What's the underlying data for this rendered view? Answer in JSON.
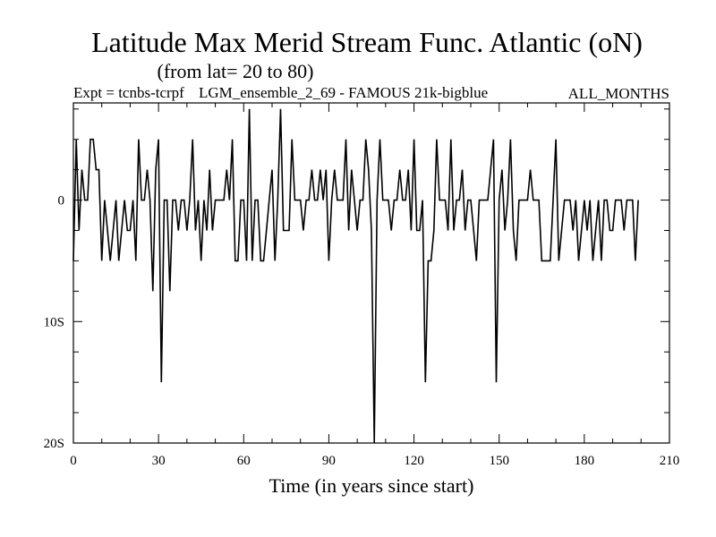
{
  "chart_data": {
    "type": "line",
    "title": "Latitude Max Merid Stream Func. Atlantic (oN)",
    "subtitle": "(from lat= 20 to 80)",
    "expt_label": "Expt = tcnbs-tcrpf",
    "run_label": "LGM_ensemble_2_69 - FAMOUS 21k-bigblue",
    "period_label": "ALL_MONTHS",
    "xlabel": "Time (in years since start)",
    "ylabel": "",
    "xlim": [
      0,
      210
    ],
    "ylim": [
      -20,
      8
    ],
    "x_ticks": [
      0,
      30,
      60,
      90,
      120,
      150,
      180,
      210
    ],
    "x_tick_labels": [
      "0",
      "30",
      "60",
      "90",
      "120",
      "150",
      "180",
      "210"
    ],
    "y_ticks": [
      0,
      -10,
      -20
    ],
    "y_tick_labels": [
      "0",
      "10S",
      "20S"
    ],
    "series": [
      {
        "x": [
          0,
          1,
          2,
          3,
          4,
          5,
          6,
          7,
          8,
          9,
          10,
          11,
          12,
          13,
          14,
          15,
          16,
          17,
          18,
          19,
          20,
          21,
          22,
          23,
          24,
          25,
          26,
          27,
          28,
          29,
          30,
          31,
          32,
          33,
          34,
          35,
          36,
          37,
          38,
          39,
          40,
          41,
          42,
          43,
          44,
          45,
          46,
          47,
          48,
          49,
          50,
          51,
          52,
          53,
          54,
          55,
          56,
          57,
          58,
          59,
          60,
          61,
          62,
          63,
          64,
          65,
          66,
          67,
          68,
          69,
          70,
          71,
          72,
          73,
          74,
          75,
          76,
          77,
          78,
          79,
          80,
          81,
          82,
          83,
          84,
          85,
          86,
          87,
          88,
          89,
          90,
          91,
          92,
          93,
          94,
          95,
          96,
          97,
          98,
          99,
          100,
          101,
          102,
          103,
          104,
          105,
          106,
          107,
          108,
          109,
          110,
          111,
          112,
          113,
          114,
          115,
          116,
          117,
          118,
          119,
          120,
          121,
          122,
          123,
          124,
          125,
          126,
          127,
          128,
          129,
          130,
          131,
          132,
          133,
          134,
          135,
          136,
          137,
          138,
          139,
          140,
          141,
          142,
          143,
          144,
          145,
          146,
          147,
          148,
          149,
          150,
          151,
          152,
          153,
          154,
          155,
          156,
          157,
          158,
          159,
          160,
          161,
          162,
          163,
          164,
          165,
          166,
          167,
          168,
          169,
          170,
          171,
          172,
          173,
          174,
          175,
          176,
          177,
          178,
          179,
          180,
          181,
          182,
          183,
          184,
          185,
          186,
          187,
          188,
          189,
          190,
          191,
          192,
          193,
          194,
          195,
          196,
          197,
          198,
          199
        ],
        "values": [
          -5,
          5,
          -2.5,
          2.5,
          0,
          0,
          5,
          5,
          2.5,
          2.5,
          -5,
          0,
          -2.5,
          -5,
          -2.5,
          0,
          -5,
          -2.5,
          0,
          -2.5,
          -2.5,
          0,
          -5,
          5,
          0,
          0,
          2.5,
          0,
          -7.5,
          2.5,
          5,
          -15,
          0,
          0,
          -7.5,
          0,
          0,
          -2.5,
          0,
          0,
          -2.5,
          0,
          5,
          -2.5,
          0,
          -5,
          0,
          -2.5,
          2.5,
          -2.5,
          0,
          0,
          0,
          0,
          2.5,
          0,
          5,
          -5,
          -5,
          0,
          0,
          -5,
          7.5,
          -5,
          0,
          0,
          -5,
          -5,
          -2.5,
          0,
          2.5,
          -5,
          0,
          7.5,
          -2.5,
          -2.5,
          -2.5,
          5,
          0,
          0,
          0,
          -2.5,
          0,
          0,
          2.5,
          0,
          0,
          2.5,
          0,
          2.5,
          -5,
          0,
          2.5,
          0,
          0,
          0,
          5,
          -2.5,
          2.5,
          0,
          -2.5,
          0,
          0,
          5,
          2.5,
          -2.5,
          -20,
          0,
          5,
          0,
          0,
          0,
          -2.5,
          0,
          0,
          2.5,
          0,
          0,
          2.5,
          -2.5,
          5,
          -2.5,
          -2.5,
          0,
          -15,
          -5,
          -5,
          -2.5,
          5,
          0,
          0,
          0,
          -2.5,
          5,
          -2.5,
          0,
          0,
          2.5,
          -2.5,
          0,
          0,
          -2.5,
          -5,
          0,
          0,
          0,
          0,
          2.5,
          5,
          -15,
          0,
          2.5,
          -2.5,
          0,
          5,
          -2.5,
          -5,
          0,
          0,
          0,
          0,
          2.5,
          0,
          0,
          0,
          -5,
          -5,
          -5,
          -5,
          0,
          5,
          -5,
          -2.5,
          0,
          0,
          0,
          -2.5,
          0,
          -5,
          -2.5,
          0,
          -2.5,
          0,
          -5,
          -2.5,
          0,
          -5,
          0,
          0,
          -2.5,
          -2.5,
          0,
          0,
          0,
          -2.5,
          0,
          0,
          0,
          -5,
          0
        ]
      }
    ]
  }
}
